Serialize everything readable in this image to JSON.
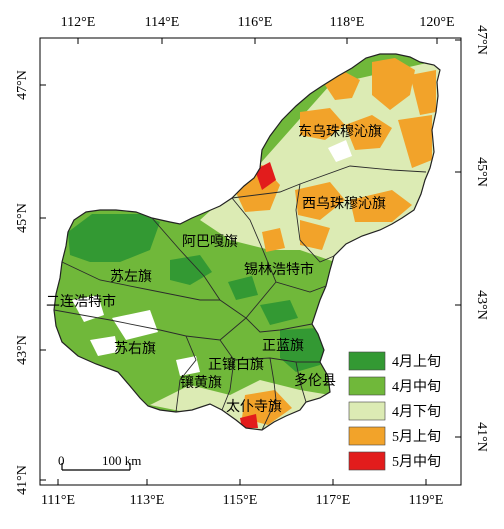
{
  "colors": {
    "apr_early": "#339933",
    "apr_mid": "#70b83a",
    "apr_late": "#dcebb4",
    "may_early": "#f2a32a",
    "may_mid": "#e21c1c",
    "no_data": "#ffffff",
    "boundary": "#333333"
  },
  "axes": {
    "top": [
      "112°E",
      "114°E",
      "116°E",
      "118°E",
      "120°E"
    ],
    "bottom": [
      "111°E",
      "113°E",
      "115°E",
      "117°E",
      "119°E"
    ],
    "left": [
      "47°N",
      "45°N",
      "43°N",
      "41°N"
    ],
    "right": [
      "47°N",
      "45°N",
      "43°N",
      "41°N"
    ]
  },
  "places": [
    {
      "id": "dongwu",
      "label": "东乌珠穆沁旗"
    },
    {
      "id": "xiwu",
      "label": "西乌珠穆沁旗"
    },
    {
      "id": "abaga",
      "label": "阿巴嘎旗"
    },
    {
      "id": "xilinhot",
      "label": "锡林浩特市"
    },
    {
      "id": "suzuo",
      "label": "苏左旗"
    },
    {
      "id": "erlian",
      "label": "二连浩特市"
    },
    {
      "id": "suyou",
      "label": "苏右旗"
    },
    {
      "id": "zhenglan",
      "label": "正蓝旗"
    },
    {
      "id": "zhengxiangbai",
      "label": "正镶白旗"
    },
    {
      "id": "xianghuang",
      "label": "镶黄旗"
    },
    {
      "id": "duolun",
      "label": "多伦县"
    },
    {
      "id": "taipusi",
      "label": "太仆寺旗"
    }
  ],
  "legend": [
    {
      "label": "4月上旬",
      "color": "#339933"
    },
    {
      "label": "4月中旬",
      "color": "#70b83a"
    },
    {
      "label": "4月下旬",
      "color": "#dcebb4"
    },
    {
      "label": "5月上旬",
      "color": "#f2a32a"
    },
    {
      "label": "5月中旬",
      "color": "#e21c1c"
    }
  ],
  "scale_bar": {
    "start": "0",
    "end": "100 km"
  }
}
